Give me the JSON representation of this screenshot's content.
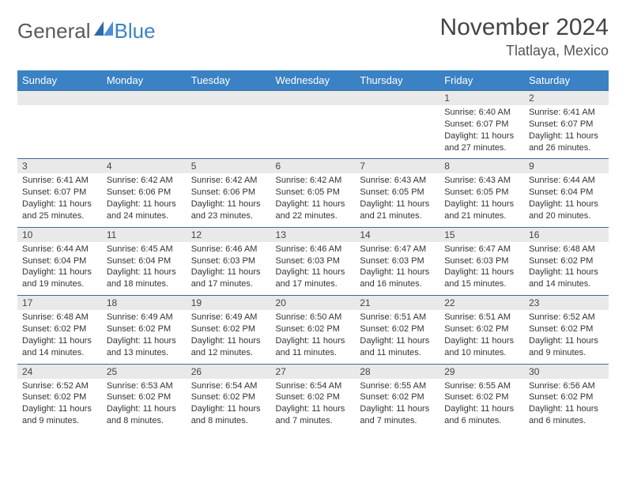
{
  "logo": {
    "general": "General",
    "blue": "Blue"
  },
  "title": "November 2024",
  "location": "Tlatlaya, Mexico",
  "colors": {
    "header_bg": "#3b82c4",
    "header_text": "#ffffff",
    "date_bar_bg": "#e9e9e9",
    "cell_border": "#3b6ca0",
    "body_text": "#333333",
    "title_text": "#444444"
  },
  "day_headers": [
    "Sunday",
    "Monday",
    "Tuesday",
    "Wednesday",
    "Thursday",
    "Friday",
    "Saturday"
  ],
  "weeks": [
    [
      {
        "date": "",
        "sunrise": "",
        "sunset": "",
        "daylight": "",
        "empty": true
      },
      {
        "date": "",
        "sunrise": "",
        "sunset": "",
        "daylight": "",
        "empty": true
      },
      {
        "date": "",
        "sunrise": "",
        "sunset": "",
        "daylight": "",
        "empty": true
      },
      {
        "date": "",
        "sunrise": "",
        "sunset": "",
        "daylight": "",
        "empty": true
      },
      {
        "date": "",
        "sunrise": "",
        "sunset": "",
        "daylight": "",
        "empty": true
      },
      {
        "date": "1",
        "sunrise": "Sunrise: 6:40 AM",
        "sunset": "Sunset: 6:07 PM",
        "daylight": "Daylight: 11 hours and 27 minutes."
      },
      {
        "date": "2",
        "sunrise": "Sunrise: 6:41 AM",
        "sunset": "Sunset: 6:07 PM",
        "daylight": "Daylight: 11 hours and 26 minutes."
      }
    ],
    [
      {
        "date": "3",
        "sunrise": "Sunrise: 6:41 AM",
        "sunset": "Sunset: 6:07 PM",
        "daylight": "Daylight: 11 hours and 25 minutes."
      },
      {
        "date": "4",
        "sunrise": "Sunrise: 6:42 AM",
        "sunset": "Sunset: 6:06 PM",
        "daylight": "Daylight: 11 hours and 24 minutes."
      },
      {
        "date": "5",
        "sunrise": "Sunrise: 6:42 AM",
        "sunset": "Sunset: 6:06 PM",
        "daylight": "Daylight: 11 hours and 23 minutes."
      },
      {
        "date": "6",
        "sunrise": "Sunrise: 6:42 AM",
        "sunset": "Sunset: 6:05 PM",
        "daylight": "Daylight: 11 hours and 22 minutes."
      },
      {
        "date": "7",
        "sunrise": "Sunrise: 6:43 AM",
        "sunset": "Sunset: 6:05 PM",
        "daylight": "Daylight: 11 hours and 21 minutes."
      },
      {
        "date": "8",
        "sunrise": "Sunrise: 6:43 AM",
        "sunset": "Sunset: 6:05 PM",
        "daylight": "Daylight: 11 hours and 21 minutes."
      },
      {
        "date": "9",
        "sunrise": "Sunrise: 6:44 AM",
        "sunset": "Sunset: 6:04 PM",
        "daylight": "Daylight: 11 hours and 20 minutes."
      }
    ],
    [
      {
        "date": "10",
        "sunrise": "Sunrise: 6:44 AM",
        "sunset": "Sunset: 6:04 PM",
        "daylight": "Daylight: 11 hours and 19 minutes."
      },
      {
        "date": "11",
        "sunrise": "Sunrise: 6:45 AM",
        "sunset": "Sunset: 6:04 PM",
        "daylight": "Daylight: 11 hours and 18 minutes."
      },
      {
        "date": "12",
        "sunrise": "Sunrise: 6:46 AM",
        "sunset": "Sunset: 6:03 PM",
        "daylight": "Daylight: 11 hours and 17 minutes."
      },
      {
        "date": "13",
        "sunrise": "Sunrise: 6:46 AM",
        "sunset": "Sunset: 6:03 PM",
        "daylight": "Daylight: 11 hours and 17 minutes."
      },
      {
        "date": "14",
        "sunrise": "Sunrise: 6:47 AM",
        "sunset": "Sunset: 6:03 PM",
        "daylight": "Daylight: 11 hours and 16 minutes."
      },
      {
        "date": "15",
        "sunrise": "Sunrise: 6:47 AM",
        "sunset": "Sunset: 6:03 PM",
        "daylight": "Daylight: 11 hours and 15 minutes."
      },
      {
        "date": "16",
        "sunrise": "Sunrise: 6:48 AM",
        "sunset": "Sunset: 6:02 PM",
        "daylight": "Daylight: 11 hours and 14 minutes."
      }
    ],
    [
      {
        "date": "17",
        "sunrise": "Sunrise: 6:48 AM",
        "sunset": "Sunset: 6:02 PM",
        "daylight": "Daylight: 11 hours and 14 minutes."
      },
      {
        "date": "18",
        "sunrise": "Sunrise: 6:49 AM",
        "sunset": "Sunset: 6:02 PM",
        "daylight": "Daylight: 11 hours and 13 minutes."
      },
      {
        "date": "19",
        "sunrise": "Sunrise: 6:49 AM",
        "sunset": "Sunset: 6:02 PM",
        "daylight": "Daylight: 11 hours and 12 minutes."
      },
      {
        "date": "20",
        "sunrise": "Sunrise: 6:50 AM",
        "sunset": "Sunset: 6:02 PM",
        "daylight": "Daylight: 11 hours and 11 minutes."
      },
      {
        "date": "21",
        "sunrise": "Sunrise: 6:51 AM",
        "sunset": "Sunset: 6:02 PM",
        "daylight": "Daylight: 11 hours and 11 minutes."
      },
      {
        "date": "22",
        "sunrise": "Sunrise: 6:51 AM",
        "sunset": "Sunset: 6:02 PM",
        "daylight": "Daylight: 11 hours and 10 minutes."
      },
      {
        "date": "23",
        "sunrise": "Sunrise: 6:52 AM",
        "sunset": "Sunset: 6:02 PM",
        "daylight": "Daylight: 11 hours and 9 minutes."
      }
    ],
    [
      {
        "date": "24",
        "sunrise": "Sunrise: 6:52 AM",
        "sunset": "Sunset: 6:02 PM",
        "daylight": "Daylight: 11 hours and 9 minutes."
      },
      {
        "date": "25",
        "sunrise": "Sunrise: 6:53 AM",
        "sunset": "Sunset: 6:02 PM",
        "daylight": "Daylight: 11 hours and 8 minutes."
      },
      {
        "date": "26",
        "sunrise": "Sunrise: 6:54 AM",
        "sunset": "Sunset: 6:02 PM",
        "daylight": "Daylight: 11 hours and 8 minutes."
      },
      {
        "date": "27",
        "sunrise": "Sunrise: 6:54 AM",
        "sunset": "Sunset: 6:02 PM",
        "daylight": "Daylight: 11 hours and 7 minutes."
      },
      {
        "date": "28",
        "sunrise": "Sunrise: 6:55 AM",
        "sunset": "Sunset: 6:02 PM",
        "daylight": "Daylight: 11 hours and 7 minutes."
      },
      {
        "date": "29",
        "sunrise": "Sunrise: 6:55 AM",
        "sunset": "Sunset: 6:02 PM",
        "daylight": "Daylight: 11 hours and 6 minutes."
      },
      {
        "date": "30",
        "sunrise": "Sunrise: 6:56 AM",
        "sunset": "Sunset: 6:02 PM",
        "daylight": "Daylight: 11 hours and 6 minutes."
      }
    ]
  ]
}
